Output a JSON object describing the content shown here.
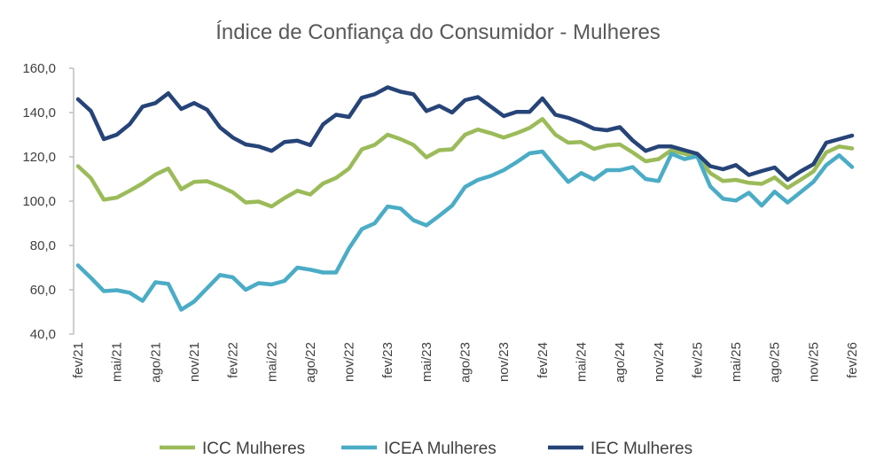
{
  "chart_data": {
    "type": "line",
    "title": "Índice de Confiança do Consumidor - Mulheres",
    "xlabel": "",
    "ylabel": "",
    "ylim": [
      40,
      160
    ],
    "yticks": [
      "40,0",
      "60,0",
      "80,0",
      "100,0",
      "120,0",
      "140,0",
      "160,0"
    ],
    "ytick_values": [
      40,
      60,
      80,
      100,
      120,
      140,
      160
    ],
    "grid": false,
    "legend_position": "bottom",
    "x_tick_labels": [
      "fev/21",
      "mai/21",
      "ago/21",
      "nov/21",
      "fev/22",
      "mai/22",
      "ago/22",
      "nov/22",
      "fev/23",
      "mai/23",
      "ago/23",
      "nov/23",
      "fev/24",
      "mai/24",
      "ago/24",
      "nov/24",
      "fev/25",
      "mai/25",
      "ago/25",
      "nov/25",
      "fev/26"
    ],
    "categories": [
      "fev/21",
      "mar/21",
      "abr/21",
      "mai/21",
      "jun/21",
      "jul/21",
      "ago/21",
      "set/21",
      "out/21",
      "nov/21",
      "dez/21",
      "jan/22",
      "fev/22",
      "mar/22",
      "abr/22",
      "mai/22",
      "jun/22",
      "jul/22",
      "ago/22",
      "set/22",
      "out/22",
      "nov/22",
      "dez/22",
      "jan/23",
      "fev/23",
      "mar/23",
      "abr/23",
      "mai/23",
      "jun/23",
      "jul/23",
      "ago/23",
      "set/23",
      "out/23",
      "nov/23",
      "dez/23",
      "jan/24",
      "fev/24",
      "mar/24",
      "abr/24",
      "mai/24",
      "jun/24",
      "jul/24",
      "ago/24",
      "set/24",
      "out/24",
      "nov/24",
      "dez/24",
      "jan/25",
      "fev/25",
      "mar/25",
      "abr/25",
      "mai/25",
      "jun/25",
      "jul/25",
      "ago/25",
      "set/25",
      "out/25",
      "nov/25",
      "dez/25",
      "jan/26",
      "fev/26"
    ],
    "series": [
      {
        "name": "ICC Mulheres",
        "color": "#9BBB59",
        "values": [
          115.8,
          110.4,
          100.7,
          101.6,
          104.7,
          108.0,
          112.0,
          114.7,
          105.4,
          108.7,
          109.0,
          106.7,
          104.0,
          99.4,
          99.8,
          97.6,
          101.4,
          104.7,
          103.0,
          108.0,
          110.5,
          114.7,
          123.4,
          125.4,
          130.0,
          128.0,
          125.4,
          119.8,
          123.0,
          123.4,
          130.0,
          132.3,
          130.7,
          128.7,
          130.7,
          133.1,
          137.1,
          130.0,
          126.4,
          126.7,
          123.6,
          125.1,
          125.6,
          122.0,
          118.0,
          119.0,
          123.0,
          121.4,
          120.0,
          112.7,
          109.1,
          109.6,
          108.3,
          107.8,
          110.7,
          106.0,
          109.6,
          113.4,
          122.0,
          124.7,
          123.8
        ]
      },
      {
        "name": "ICEA Mulheres",
        "color": "#4BACC6",
        "values": [
          71.0,
          65.4,
          59.4,
          59.8,
          58.7,
          55.0,
          63.4,
          62.7,
          51.0,
          54.7,
          60.7,
          66.7,
          65.6,
          60.0,
          63.0,
          62.4,
          64.0,
          70.0,
          69.1,
          67.8,
          67.8,
          78.7,
          87.4,
          90.0,
          97.6,
          96.7,
          91.4,
          89.1,
          93.4,
          98.0,
          106.4,
          109.6,
          111.4,
          114.0,
          117.6,
          121.6,
          122.4,
          115.4,
          108.7,
          112.7,
          109.8,
          114.0,
          114.0,
          115.4,
          110.0,
          109.1,
          121.4,
          119.0,
          120.3,
          106.7,
          101.1,
          100.3,
          103.8,
          98.0,
          104.3,
          99.4,
          104.0,
          108.7,
          116.3,
          120.7,
          115.4
        ]
      },
      {
        "name": "IEC Mulheres",
        "color": "#264478",
        "values": [
          146.0,
          140.7,
          128.0,
          130.0,
          134.7,
          142.7,
          144.3,
          148.7,
          141.6,
          144.3,
          141.3,
          133.3,
          128.7,
          125.6,
          124.7,
          122.7,
          126.7,
          127.3,
          125.3,
          134.7,
          139.0,
          138.0,
          146.7,
          148.3,
          151.4,
          149.4,
          148.3,
          140.7,
          143.0,
          140.0,
          145.6,
          147.0,
          142.7,
          138.4,
          140.3,
          140.3,
          146.4,
          139.0,
          137.6,
          135.4,
          132.7,
          132.0,
          133.4,
          127.4,
          122.7,
          124.7,
          124.7,
          123.0,
          121.4,
          115.8,
          114.4,
          116.3,
          111.8,
          113.6,
          115.2,
          109.6,
          113.4,
          116.7,
          126.4,
          128.0,
          129.6
        ]
      }
    ],
    "axis_color": "#BFBFBF"
  }
}
